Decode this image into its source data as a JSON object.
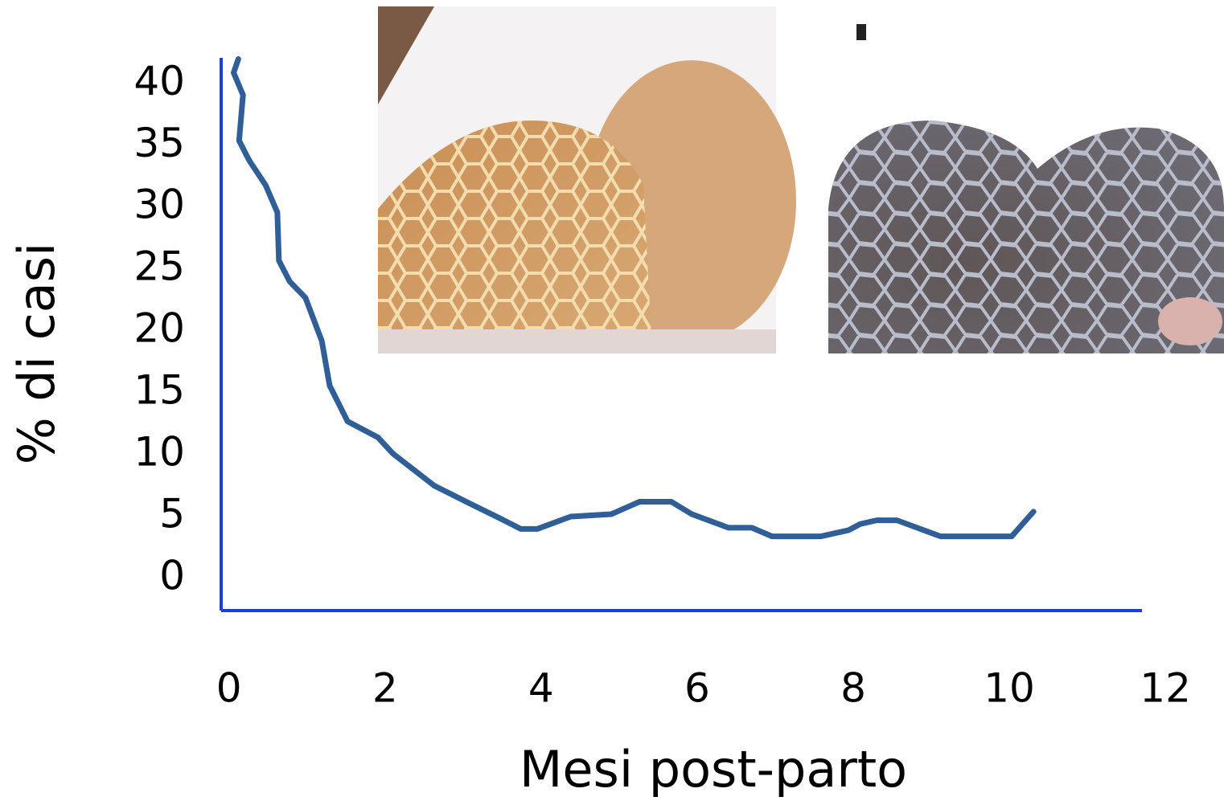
{
  "chart_data": {
    "type": "line",
    "xlabel": "Mesi post-parto",
    "ylabel": "% di casi",
    "xlim": [
      -0.1,
      11.7
    ],
    "ylim": [
      -2.6,
      42.1
    ],
    "xticks": [
      0,
      2,
      4,
      6,
      8,
      10,
      12
    ],
    "yticks": [
      0,
      5,
      10,
      15,
      20,
      25,
      30,
      35,
      40
    ],
    "axis_color": "#1a3fe0",
    "series": [
      {
        "color": "#2f5f96",
        "x": [
          0.12,
          0.06,
          0.18,
          0.13,
          0.26,
          0.47,
          0.62,
          0.64,
          0.78,
          0.98,
          1.19,
          1.29,
          1.52,
          1.91,
          2.1,
          2.63,
          3.04,
          3.46,
          3.74,
          3.95,
          4.38,
          4.9,
          5.26,
          5.67,
          5.93,
          6.4,
          6.7,
          6.96,
          7.58,
          7.94,
          8.09,
          8.3,
          8.56,
          9.12,
          10.03,
          10.31
        ],
        "values": [
          42,
          40.9,
          39.1,
          35.4,
          33.8,
          31.8,
          29.6,
          25.7,
          24.0,
          22.7,
          19.2,
          15.6,
          12.7,
          11.4,
          10.1,
          7.5,
          6.2,
          4.9,
          4.0,
          4.0,
          5.0,
          5.2,
          6.2,
          6.2,
          5.2,
          4.1,
          4.1,
          3.4,
          3.4,
          3.9,
          4.4,
          4.7,
          4.7,
          3.4,
          3.4,
          5.4
        ]
      }
    ]
  }
}
